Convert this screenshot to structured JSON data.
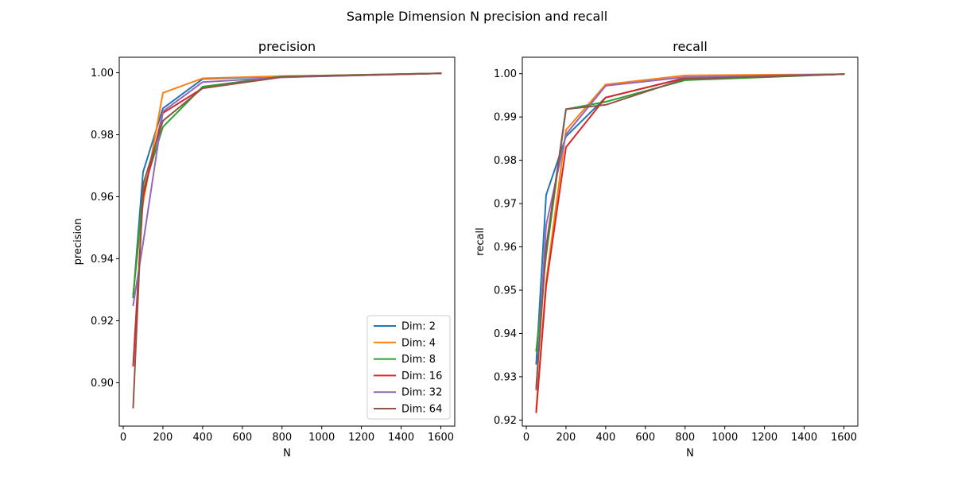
{
  "suptitle": "Sample Dimension N precision and recall",
  "chart_data": [
    {
      "type": "line",
      "title": "precision",
      "xlabel": "N",
      "ylabel": "precision",
      "xlim": [
        -20,
        1670
      ],
      "ylim": [
        0.886,
        1.005
      ],
      "xticks": [
        0,
        200,
        400,
        600,
        800,
        1000,
        1200,
        1400,
        1600
      ],
      "yticks": [
        0.9,
        0.92,
        0.94,
        0.96,
        0.98,
        1.0
      ],
      "ytick_labels": [
        "0.90",
        "0.92",
        "0.94",
        "0.96",
        "0.98",
        "1.00"
      ],
      "legend": "lower-right",
      "x": [
        50,
        100,
        200,
        400,
        800,
        1600
      ],
      "series": [
        {
          "name": "Dim: 2",
          "color": "#1f77b4",
          "values": [
            0.9275,
            0.968,
            0.9885,
            0.998,
            0.9988,
            0.9998
          ]
        },
        {
          "name": "Dim: 4",
          "color": "#ff7f0e",
          "values": [
            0.9285,
            0.958,
            0.9935,
            0.9982,
            0.9989,
            0.9998
          ]
        },
        {
          "name": "Dim: 8",
          "color": "#2ca02c",
          "values": [
            0.928,
            0.962,
            0.9825,
            0.9955,
            0.9988,
            0.9998
          ]
        },
        {
          "name": "Dim: 16",
          "color": "#d62728",
          "values": [
            0.9055,
            0.96,
            0.987,
            0.995,
            0.9986,
            0.9998
          ]
        },
        {
          "name": "Dim: 32",
          "color": "#9467bd",
          "values": [
            0.925,
            0.945,
            0.9875,
            0.997,
            0.9985,
            0.9998
          ]
        },
        {
          "name": "Dim: 64",
          "color": "#8c564b",
          "values": [
            0.892,
            0.964,
            0.9845,
            0.995,
            0.9987,
            0.9998
          ]
        }
      ]
    },
    {
      "type": "line",
      "title": "recall",
      "xlabel": "N",
      "ylabel": "recall",
      "xlim": [
        -20,
        1670
      ],
      "ylim": [
        0.9186,
        1.0038
      ],
      "xticks": [
        0,
        200,
        400,
        600,
        800,
        1000,
        1200,
        1400,
        1600
      ],
      "yticks": [
        0.92,
        0.93,
        0.94,
        0.95,
        0.96,
        0.97,
        0.98,
        0.99,
        1.0
      ],
      "ytick_labels": [
        "0.92",
        "0.93",
        "0.94",
        "0.95",
        "0.96",
        "0.97",
        "0.98",
        "0.99",
        "1.00"
      ],
      "legend": "none",
      "x": [
        50,
        100,
        200,
        400,
        800,
        1600
      ],
      "series": [
        {
          "name": "Dim: 2",
          "color": "#1f77b4",
          "values": [
            0.933,
            0.972,
            0.9855,
            0.9945,
            0.999,
            0.9999
          ]
        },
        {
          "name": "Dim: 4",
          "color": "#ff7f0e",
          "values": [
            0.9225,
            0.952,
            0.987,
            0.9975,
            0.9996,
            0.9999
          ]
        },
        {
          "name": "Dim: 8",
          "color": "#2ca02c",
          "values": [
            0.936,
            0.958,
            0.9918,
            0.9935,
            0.9985,
            0.9999
          ]
        },
        {
          "name": "Dim: 16",
          "color": "#d62728",
          "values": [
            0.9218,
            0.951,
            0.983,
            0.9945,
            0.999,
            0.9999
          ]
        },
        {
          "name": "Dim: 32",
          "color": "#9467bd",
          "values": [
            0.927,
            0.965,
            0.986,
            0.9972,
            0.9992,
            0.9999
          ]
        },
        {
          "name": "Dim: 64",
          "color": "#8c564b",
          "values": [
            0.9275,
            0.96,
            0.9918,
            0.9928,
            0.9988,
            0.9999
          ]
        }
      ]
    }
  ]
}
